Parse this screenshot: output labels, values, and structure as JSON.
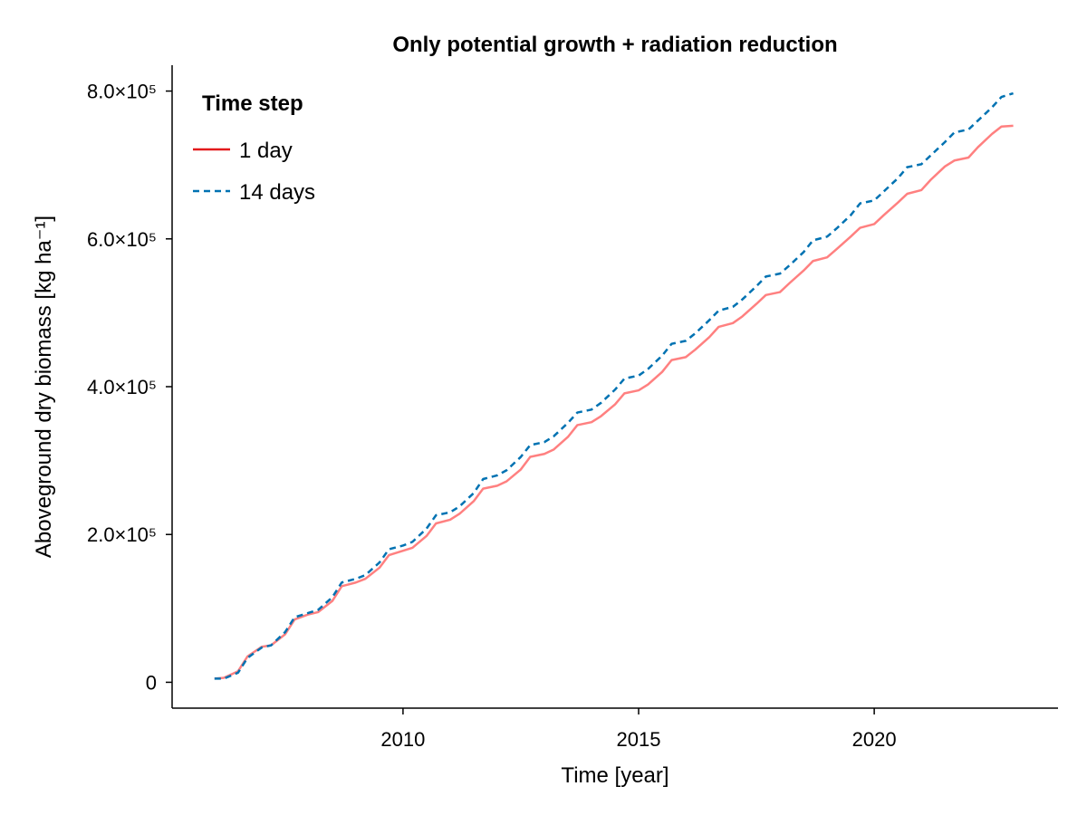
{
  "chart_data": {
    "type": "line",
    "title": "Only potential growth + radiation reduction",
    "xlabel": "Time [year]",
    "ylabel": "Aboveground dry biomass [kg ha⁻¹]",
    "xlim": [
      2005.1,
      2023.9
    ],
    "ylim": [
      -35000,
      835000
    ],
    "xticks": [
      2010,
      2015,
      2020
    ],
    "xtick_labels": [
      "2010",
      "2015",
      "2020"
    ],
    "yticks": [
      0,
      200000,
      400000,
      600000,
      800000
    ],
    "ytick_labels": [
      "0",
      "2.0×10⁵",
      "4.0×10⁵",
      "6.0×10⁵",
      "8.0×10⁵"
    ],
    "grid": false,
    "legend": {
      "title": "Time step",
      "position": "top-left"
    },
    "series": [
      {
        "name": "1 day",
        "color": "#ff8080",
        "legend_color": "#e31a1c",
        "style": "solid",
        "x": [
          2006.0,
          2006.2,
          2006.5,
          2006.7,
          2007.0,
          2007.2,
          2007.5,
          2007.7,
          2008.0,
          2008.2,
          2008.5,
          2008.7,
          2009.0,
          2009.2,
          2009.5,
          2009.7,
          2010.0,
          2010.2,
          2010.5,
          2010.7,
          2011.0,
          2011.2,
          2011.5,
          2011.7,
          2012.0,
          2012.2,
          2012.5,
          2012.7,
          2013.0,
          2013.2,
          2013.5,
          2013.7,
          2014.0,
          2014.2,
          2014.5,
          2014.7,
          2015.0,
          2015.2,
          2015.5,
          2015.7,
          2016.0,
          2016.2,
          2016.5,
          2016.7,
          2017.0,
          2017.2,
          2017.5,
          2017.7,
          2018.0,
          2018.2,
          2018.5,
          2018.7,
          2019.0,
          2019.2,
          2019.5,
          2019.7,
          2020.0,
          2020.2,
          2020.5,
          2020.7,
          2021.0,
          2021.2,
          2021.5,
          2021.7,
          2022.0,
          2022.2,
          2022.5,
          2022.7,
          2022.95
        ],
        "y": [
          5000,
          6000,
          15000,
          35000,
          48000,
          50000,
          65000,
          85000,
          92000,
          95000,
          110000,
          130000,
          135000,
          140000,
          155000,
          172000,
          178000,
          182000,
          198000,
          215000,
          220000,
          228000,
          245000,
          262000,
          266000,
          272000,
          288000,
          305000,
          309000,
          315000,
          332000,
          348000,
          352000,
          360000,
          376000,
          391000,
          395000,
          403000,
          420000,
          436000,
          440000,
          450000,
          467000,
          481000,
          486000,
          495000,
          512000,
          524000,
          528000,
          540000,
          557000,
          570000,
          575000,
          586000,
          603000,
          615000,
          620000,
          632000,
          649000,
          661000,
          666000,
          680000,
          698000,
          706000,
          710000,
          724000,
          742000,
          752000,
          753000
        ]
      },
      {
        "name": "14 days",
        "color": "#0072b2",
        "style": "dashed",
        "x": [
          2006.0,
          2006.2,
          2006.5,
          2006.7,
          2007.0,
          2007.2,
          2007.5,
          2007.7,
          2008.0,
          2008.2,
          2008.5,
          2008.7,
          2009.0,
          2009.2,
          2009.5,
          2009.7,
          2010.0,
          2010.2,
          2010.5,
          2010.7,
          2011.0,
          2011.2,
          2011.5,
          2011.7,
          2012.0,
          2012.2,
          2012.5,
          2012.7,
          2013.0,
          2013.2,
          2013.5,
          2013.7,
          2014.0,
          2014.2,
          2014.5,
          2014.7,
          2015.0,
          2015.2,
          2015.5,
          2015.7,
          2016.0,
          2016.2,
          2016.5,
          2016.7,
          2017.0,
          2017.2,
          2017.5,
          2017.7,
          2018.0,
          2018.2,
          2018.5,
          2018.7,
          2019.0,
          2019.2,
          2019.5,
          2019.7,
          2020.0,
          2020.2,
          2020.5,
          2020.7,
          2021.0,
          2021.2,
          2021.5,
          2021.7,
          2022.0,
          2022.2,
          2022.5,
          2022.7,
          2022.95
        ],
        "y": [
          5000,
          5000,
          13000,
          33000,
          47000,
          50000,
          68000,
          88000,
          94000,
          98000,
          115000,
          135000,
          140000,
          145000,
          162000,
          180000,
          185000,
          190000,
          208000,
          226000,
          230000,
          238000,
          256000,
          275000,
          280000,
          287000,
          305000,
          321000,
          325000,
          333000,
          351000,
          365000,
          369000,
          378000,
          396000,
          411000,
          415000,
          424000,
          442000,
          458000,
          462000,
          472000,
          490000,
          503000,
          508000,
          518000,
          536000,
          549000,
          553000,
          564000,
          582000,
          598000,
          603000,
          614000,
          632000,
          648000,
          652000,
          664000,
          682000,
          697000,
          701000,
          713000,
          731000,
          744000,
          748000,
          760000,
          778000,
          792000,
          797000
        ]
      }
    ]
  }
}
